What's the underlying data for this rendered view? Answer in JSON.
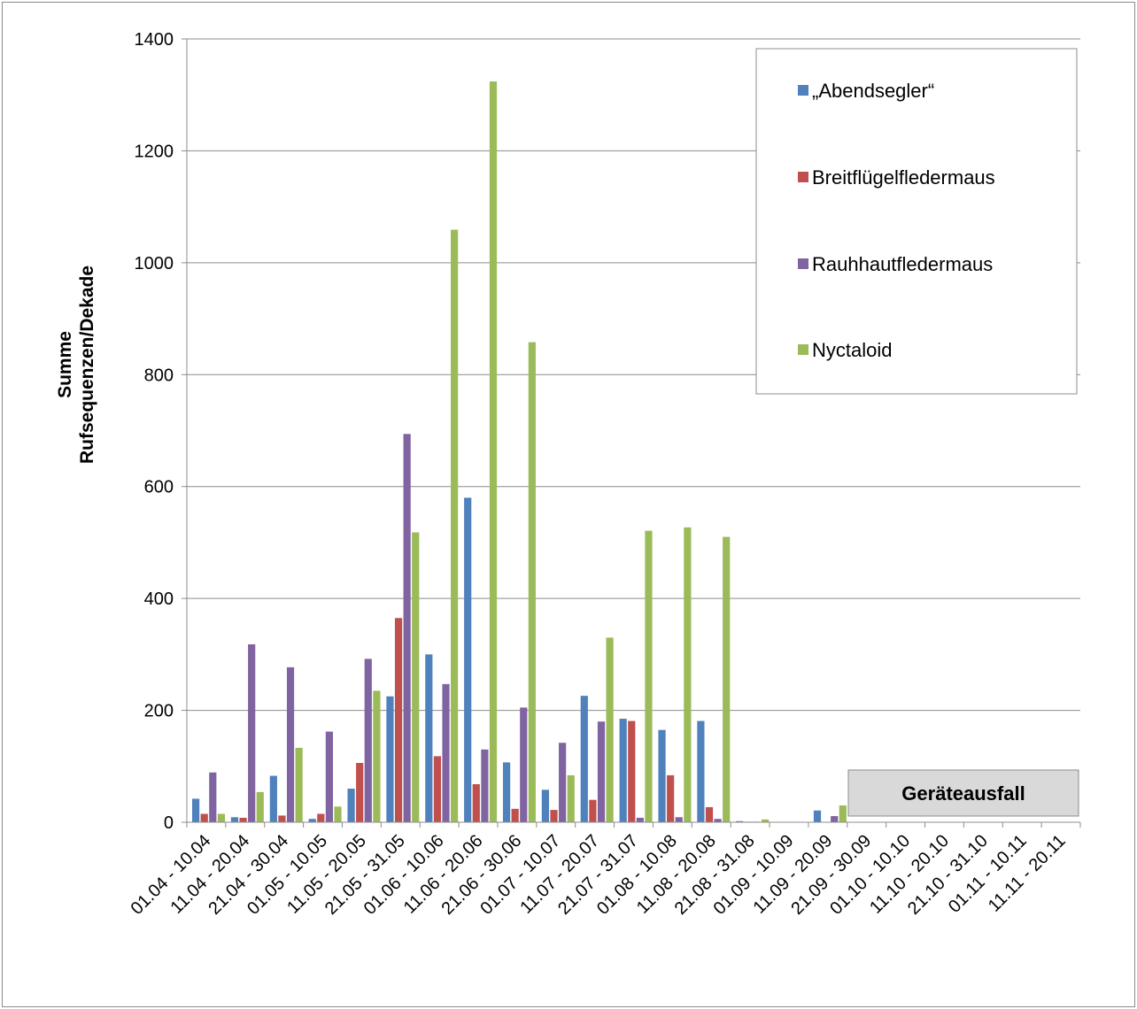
{
  "chart_data": {
    "type": "bar",
    "title": "",
    "xlabel": "",
    "ylabel_lines": [
      "Summe",
      "Rufsequenzen/Dekade"
    ],
    "ylim": [
      0,
      1400
    ],
    "yticks": [
      0,
      200,
      400,
      600,
      800,
      1000,
      1200,
      1400
    ],
    "grid": true,
    "legend_position": "top-right",
    "categories": [
      "01.04 - 10.04",
      "11.04 - 20.04",
      "21.04 - 30.04",
      "01.05 - 10.05",
      "11.05 - 20.05",
      "21.05 - 31.05",
      "01.06 - 10.06",
      "11.06 - 20.06",
      "21.06 - 30.06",
      "01.07 - 10.07",
      "11.07 - 20.07",
      "21.07 - 31.07",
      "01.08 - 10.08",
      "11.08 - 20.08",
      "21.08 - 31.08",
      "01.09 - 10.09",
      "11.09 - 20.09",
      "21.09 - 30.09",
      "01.10 - 10.10",
      "11.10 - 20.10",
      "21.10 - 31.10",
      "01.11 - 10.11",
      "11.11 - 20.11"
    ],
    "series": [
      {
        "name": "„Abendsegler“",
        "color": "#4f81bd",
        "values": [
          42,
          9,
          83,
          6,
          60,
          225,
          300,
          580,
          107,
          58,
          226,
          185,
          165,
          181,
          2,
          0,
          21,
          0,
          0,
          0,
          0,
          0,
          0
        ]
      },
      {
        "name": "Breitflügelfledermaus",
        "color": "#c0504d",
        "values": [
          15,
          8,
          12,
          15,
          106,
          365,
          118,
          68,
          24,
          22,
          40,
          181,
          84,
          27,
          1,
          0,
          0,
          0,
          0,
          0,
          0,
          0,
          0
        ]
      },
      {
        "name": "Rauhhautfledermaus",
        "color": "#8064a2",
        "values": [
          89,
          318,
          277,
          162,
          292,
          694,
          247,
          130,
          205,
          142,
          180,
          8,
          9,
          6,
          1,
          0,
          11,
          0,
          0,
          0,
          0,
          0,
          0
        ]
      },
      {
        "name": "Nyctaloid",
        "color": "#9bbb59",
        "values": [
          15,
          54,
          133,
          28,
          235,
          518,
          1059,
          1324,
          858,
          84,
          330,
          521,
          527,
          510,
          5,
          0,
          30,
          0,
          0,
          0,
          0,
          0,
          0
        ]
      }
    ],
    "annotation": "Geräteausfall"
  }
}
